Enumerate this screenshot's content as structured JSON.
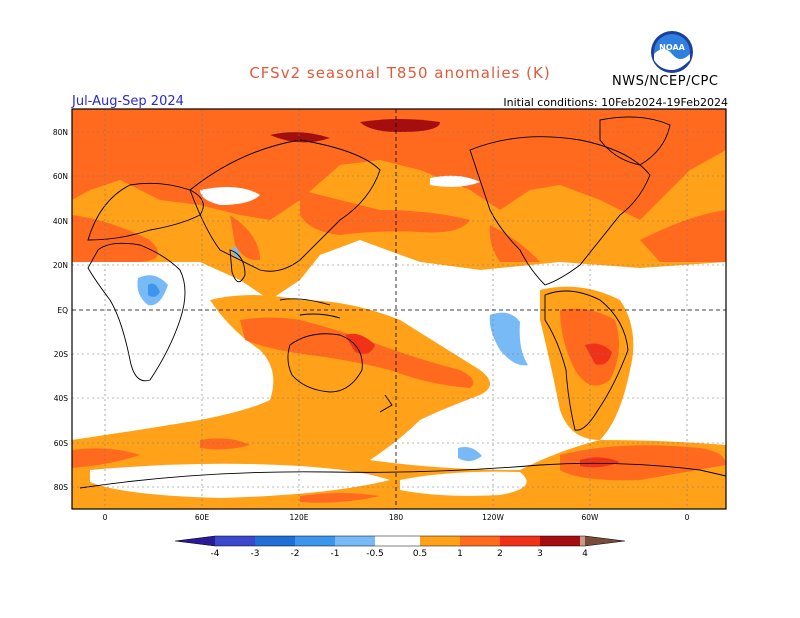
{
  "title": "CFSv2 seasonal T850 anomalies (K)",
  "season": "Jul-Aug-Sep 2024",
  "initial_conditions": "Initial conditions: 10Feb2024-19Feb2024",
  "agency": "NWS/NCEP/CPC",
  "logo_text": "NOAA",
  "colors": {
    "title": "#e05a3c",
    "season": "#2a2ad0",
    "neg4": "#2a1a9a",
    "neg3": "#3a48cc",
    "neg2": "#1f6fd6",
    "neg1": "#3c96ee",
    "neg05": "#78baf5",
    "pos05": "#ffa21a",
    "pos1": "#ff6a1f",
    "pos2": "#f03218",
    "pos3": "#a40e0e",
    "pos4": "#c89a8a",
    "pos5": "#7a4a3a"
  },
  "lat_labels": [
    "80N",
    "60N",
    "40N",
    "20N",
    "EQ",
    "20S",
    "40S",
    "60S",
    "80S"
  ],
  "lon_labels": [
    "0",
    "60E",
    "120E",
    "180",
    "120W",
    "60W",
    "0"
  ],
  "colorbar_labels": [
    "-4",
    "-3",
    "-2",
    "-1",
    "-0.5",
    "0.5",
    "1",
    "2",
    "3",
    "4"
  ]
}
